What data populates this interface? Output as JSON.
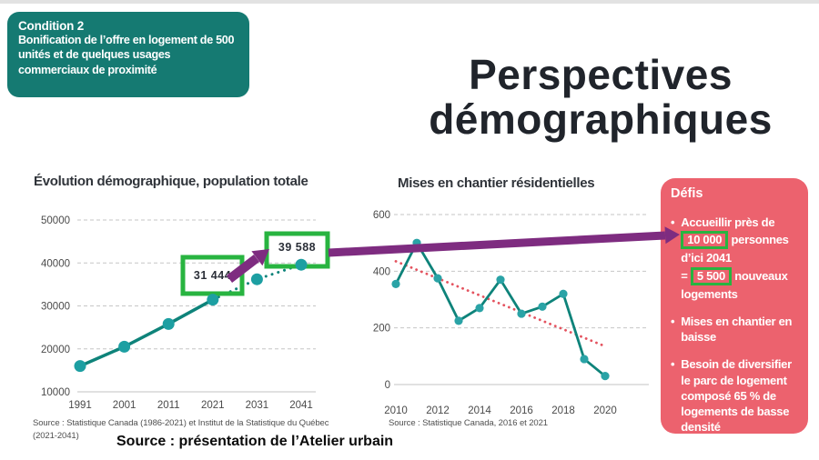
{
  "slide": {
    "condition_box": {
      "title": "Condition 2",
      "body": "Bonification de l’offre en logement de 500 unités et de quelques usages commerciaux de proximité"
    },
    "title_line1": "Perspectives",
    "title_line2": "démographiques",
    "bottom_source": "Source : présentation de l’Atelier urbain"
  },
  "chart_data": [
    {
      "id": "population",
      "type": "line",
      "title": "Évolution démographique, population totale",
      "x": [
        1991,
        2001,
        2011,
        2021,
        2031,
        2041
      ],
      "xticks": [
        1991,
        2001,
        2011,
        2021,
        2031,
        2041
      ],
      "series": [
        {
          "name": "population totale",
          "values": [
            16000,
            20500,
            25800,
            31444,
            36200,
            39588
          ]
        }
      ],
      "projection_from_x": 2021,
      "yticks": [
        10000,
        20000,
        30000,
        40000,
        50000
      ],
      "ylim": [
        10000,
        50000
      ],
      "grid": true,
      "legend": "none",
      "line_color": "#0e837a",
      "dot_color": "#1d9fa2",
      "annotations": [
        {
          "label": "31 444",
          "x": 2021,
          "y": 31444
        },
        {
          "label": "39 588",
          "x": 2041,
          "y": 39588
        }
      ],
      "source": "Source : Statistique Canada (1986-2021) et Institut de la Statistique du Québec (2021-2041)"
    },
    {
      "id": "housing-starts",
      "type": "line",
      "title": "Mises en chantier résidentielles",
      "x": [
        2010,
        2011,
        2012,
        2013,
        2014,
        2015,
        2016,
        2017,
        2018,
        2019,
        2020
      ],
      "xticks": [
        2010,
        2012,
        2014,
        2016,
        2018,
        2020
      ],
      "series": [
        {
          "name": "mises en chantier",
          "values": [
            355,
            500,
            375,
            225,
            270,
            370,
            250,
            275,
            320,
            90,
            30
          ]
        }
      ],
      "trendline": {
        "x": [
          2010,
          2020
        ],
        "values": [
          435,
          135
        ],
        "color": "#e4535f",
        "style": "dotted"
      },
      "yticks": [
        0,
        200,
        400,
        600
      ],
      "ylim": [
        0,
        600
      ],
      "grid": true,
      "legend": "none",
      "line_color": "#0e837a",
      "dot_color": "#2aa3a6",
      "source": "Source : Statistique Canada, 2016 et 2021"
    }
  ],
  "defis_box": {
    "title": "Défis",
    "bullets": [
      {
        "segments": [
          {
            "text": "Accueillir près de "
          },
          {
            "text": "10 000",
            "highlight": true
          },
          {
            "text": " personnes d’ici 2041"
          },
          {
            "break": true
          },
          {
            "text": "= "
          },
          {
            "text": "5 500",
            "highlight": true
          },
          {
            "text": " nouveaux logements"
          }
        ]
      },
      {
        "segments": [
          {
            "text": "Mises en chantier en baisse"
          }
        ]
      },
      {
        "segments": [
          {
            "text": "Besoin de diversifier le parc de logement composé 65 % de logements de basse densité"
          }
        ]
      }
    ]
  },
  "colors": {
    "teal_box": "#157a72",
    "chart_line": "#0e837a",
    "green_highlight": "#28b440",
    "purple_arrow": "#7e2c80",
    "red_box": "#ec626e",
    "trend_red": "#e4535f"
  }
}
